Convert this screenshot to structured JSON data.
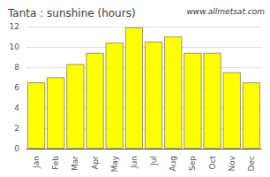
{
  "chart_data": {
    "type": "bar",
    "title": "Tanta : sunshine (hours)",
    "categories": [
      "Jan",
      "Feb",
      "Mar",
      "Apr",
      "May",
      "Jun",
      "Jul",
      "Aug",
      "Sep",
      "Oct",
      "Nov",
      "Dec"
    ],
    "values": [
      6.5,
      7.0,
      8.3,
      9.4,
      10.4,
      11.9,
      10.5,
      11.0,
      9.4,
      9.4,
      7.5,
      6.5
    ],
    "color": "#FFFF00",
    "ylim": [
      0,
      12
    ],
    "yticks": [
      0,
      2,
      4,
      6,
      8,
      10,
      12
    ],
    "grid": true,
    "annotations": [
      "www.allmetsat.com"
    ]
  }
}
